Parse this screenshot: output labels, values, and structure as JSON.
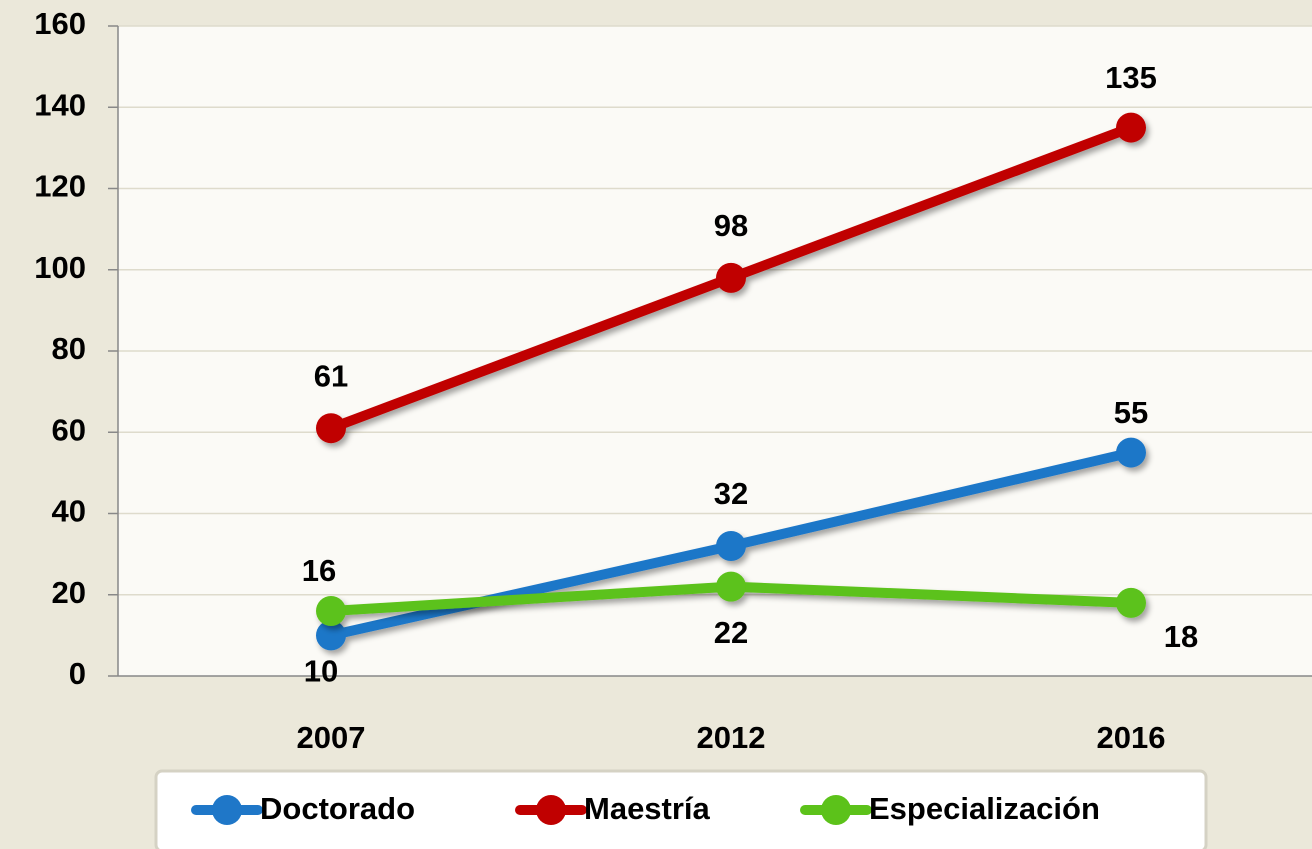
{
  "chart_data": {
    "type": "line",
    "categories": [
      "2007",
      "2012",
      "2016"
    ],
    "series": [
      {
        "name": "Doctorado",
        "color": "#1f77c8",
        "values": [
          10,
          32,
          55
        ]
      },
      {
        "name": "Maestría",
        "color": "#c00000",
        "values": [
          61,
          98,
          135
        ]
      },
      {
        "name": "Especialización",
        "color": "#5cc21a",
        "values": [
          16,
          22,
          18
        ]
      }
    ],
    "ylim": [
      0,
      160
    ],
    "yticks": [
      0,
      20,
      40,
      60,
      80,
      100,
      120,
      140,
      160
    ],
    "grid": true,
    "legend": "bottom"
  }
}
